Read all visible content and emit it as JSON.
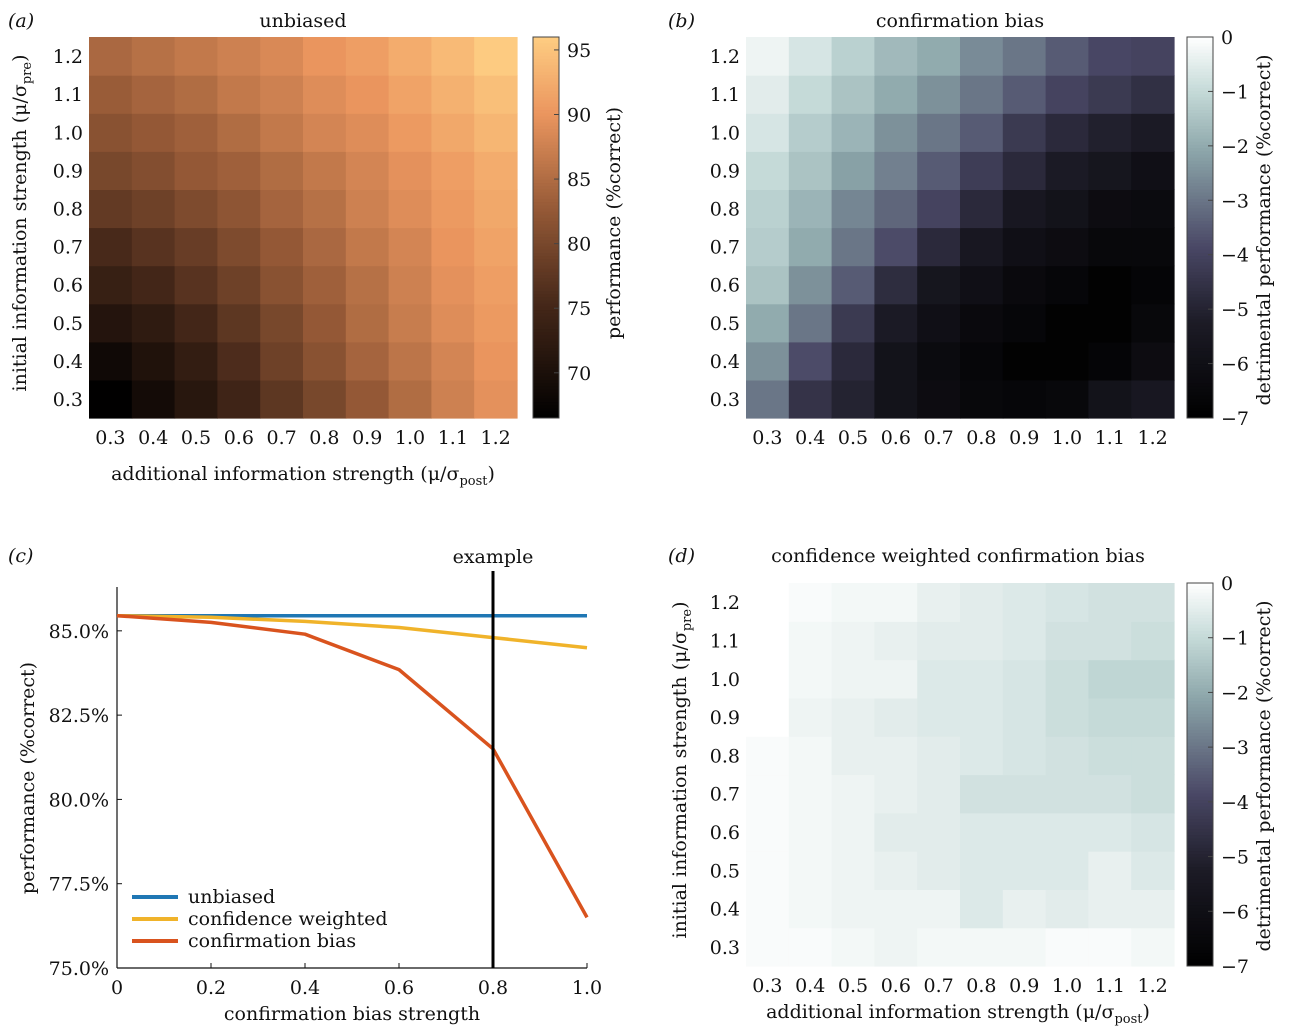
{
  "panels": {
    "a": {
      "letter": "(a)",
      "title": "unbiased"
    },
    "b": {
      "letter": "(b)",
      "title": "confirmation bias"
    },
    "c": {
      "letter": "(c)",
      "annotation": "example"
    },
    "d": {
      "letter": "(d)",
      "title": "confidence weighted confirmation bias"
    }
  },
  "axis_labels": {
    "initial_strength": "initial information strength (μ/σ",
    "initial_sub": "pre",
    "additional_strength": "additional information strength (μ/σ",
    "additional_sub": "post",
    "close_paren": ")",
    "performance_colorbar": "performance (%correct)",
    "detrimental_colorbar": "detrimental performance (%correct)",
    "performance_axis": "performance (%correct)",
    "bias_strength_axis": "confirmation bias strength"
  },
  "colors": {
    "unbiased": "#1f77b4",
    "confidence_weighted": "#f0b32a",
    "confirmation_bias": "#d9531e"
  },
  "chart_data": [
    {
      "id": "a",
      "type": "heatmap",
      "title": "unbiased",
      "x_ticks": [
        "0.3",
        "0.4",
        "0.5",
        "0.6",
        "0.7",
        "0.8",
        "0.9",
        "1.0",
        "1.1",
        "1.2"
      ],
      "y_ticks": [
        "0.3",
        "0.4",
        "0.5",
        "0.6",
        "0.7",
        "0.8",
        "0.9",
        "1.0",
        "1.1",
        "1.2"
      ],
      "x_values": [
        0.3,
        0.4,
        0.5,
        0.6,
        0.7,
        0.8,
        0.9,
        1.0,
        1.1,
        1.2
      ],
      "y_values": [
        0.3,
        0.4,
        0.5,
        0.6,
        0.7,
        0.8,
        0.9,
        1.0,
        1.1,
        1.2
      ],
      "xlabel": "additional information strength (μ/σpost)",
      "ylabel": "initial information strength (μ/σpre)",
      "colorbar": {
        "label": "performance (%correct)",
        "ticks": [
          "70",
          "75",
          "80",
          "85",
          "90",
          "95"
        ],
        "range": [
          66.5,
          96
        ],
        "colormap": "copper"
      },
      "z": [
        [
          66.6,
          69.0,
          71.5,
          74.5,
          77.5,
          80.0,
          82.5,
          85.0,
          87.5,
          89.5
        ],
        [
          68.5,
          70.5,
          73.0,
          76.0,
          79.0,
          81.5,
          84.0,
          86.0,
          88.0,
          90.0
        ],
        [
          71.0,
          72.5,
          75.0,
          77.5,
          80.0,
          82.5,
          85.0,
          87.0,
          89.0,
          90.5
        ],
        [
          73.5,
          75.0,
          77.0,
          79.0,
          81.5,
          83.5,
          85.5,
          87.5,
          89.5,
          91.0
        ],
        [
          75.5,
          77.0,
          78.5,
          80.5,
          82.5,
          84.5,
          86.5,
          88.0,
          90.0,
          91.5
        ],
        [
          78.0,
          79.0,
          80.5,
          82.0,
          84.0,
          85.5,
          87.5,
          89.0,
          90.5,
          92.0
        ],
        [
          80.0,
          81.0,
          82.5,
          83.5,
          85.0,
          86.5,
          88.0,
          89.5,
          91.0,
          92.5
        ],
        [
          81.5,
          82.5,
          83.5,
          85.0,
          86.5,
          88.0,
          89.0,
          90.5,
          92.0,
          93.5
        ],
        [
          83.0,
          84.0,
          85.0,
          86.5,
          87.5,
          89.0,
          90.0,
          91.5,
          93.0,
          94.5
        ],
        [
          84.5,
          85.5,
          86.5,
          87.5,
          88.5,
          90.0,
          91.0,
          92.5,
          94.0,
          95.8
        ]
      ]
    },
    {
      "id": "b",
      "type": "heatmap",
      "title": "confirmation bias",
      "x_ticks": [
        "0.3",
        "0.4",
        "0.5",
        "0.6",
        "0.7",
        "0.8",
        "0.9",
        "1.0",
        "1.1",
        "1.2"
      ],
      "y_ticks": [
        "0.3",
        "0.4",
        "0.5",
        "0.6",
        "0.7",
        "0.8",
        "0.9",
        "1.0",
        "1.1",
        "1.2"
      ],
      "x_values": [
        0.3,
        0.4,
        0.5,
        0.6,
        0.7,
        0.8,
        0.9,
        1.0,
        1.1,
        1.2
      ],
      "y_values": [
        0.3,
        0.4,
        0.5,
        0.6,
        0.7,
        0.8,
        0.9,
        1.0,
        1.1,
        1.2
      ],
      "colorbar": {
        "label": "detrimental performance (%correct)",
        "ticks": [
          "0",
          "−1",
          "−2",
          "−3",
          "−4",
          "−5",
          "−6",
          "−7"
        ],
        "range": [
          -7,
          0
        ],
        "colormap": "bone"
      },
      "z": [
        [
          -3.0,
          -4.5,
          -5.0,
          -5.8,
          -6.2,
          -6.5,
          -6.6,
          -6.5,
          -5.8,
          -5.5
        ],
        [
          -2.5,
          -3.8,
          -4.8,
          -5.8,
          -6.3,
          -6.6,
          -6.9,
          -6.9,
          -6.7,
          -6.2
        ],
        [
          -2.0,
          -3.0,
          -4.3,
          -5.3,
          -6.0,
          -6.4,
          -6.6,
          -6.9,
          -6.9,
          -6.5
        ],
        [
          -1.5,
          -2.5,
          -3.5,
          -4.7,
          -5.6,
          -6.0,
          -6.4,
          -6.6,
          -6.9,
          -6.7
        ],
        [
          -1.3,
          -2.0,
          -3.0,
          -3.8,
          -4.8,
          -5.5,
          -6.0,
          -6.2,
          -6.5,
          -6.5
        ],
        [
          -1.2,
          -1.8,
          -2.7,
          -3.3,
          -4.0,
          -4.8,
          -5.5,
          -5.8,
          -6.2,
          -6.3
        ],
        [
          -1.0,
          -1.5,
          -2.2,
          -2.8,
          -3.5,
          -4.2,
          -4.8,
          -5.3,
          -5.6,
          -6.0
        ],
        [
          -0.7,
          -1.3,
          -1.8,
          -2.5,
          -3.0,
          -3.5,
          -4.3,
          -4.8,
          -5.1,
          -5.3
        ],
        [
          -0.5,
          -1.0,
          -1.5,
          -2.0,
          -2.5,
          -3.0,
          -3.5,
          -4.0,
          -4.3,
          -4.6
        ],
        [
          -0.3,
          -0.7,
          -1.2,
          -1.7,
          -2.0,
          -2.6,
          -3.0,
          -3.5,
          -3.9,
          -4.0
        ]
      ]
    },
    {
      "id": "c",
      "type": "line",
      "x": [
        0,
        0.2,
        0.4,
        0.6,
        0.8,
        1.0
      ],
      "x_ticks": [
        "0",
        "0.2",
        "0.4",
        "0.6",
        "0.8",
        "1.0"
      ],
      "y_ticks": [
        "75.0%",
        "77.5%",
        "80.0%",
        "82.5%",
        "85.0%"
      ],
      "xlabel": "confirmation bias strength",
      "ylabel": "performance (%correct)",
      "xlim": [
        0,
        1.0
      ],
      "ylim": [
        75.0,
        86.3
      ],
      "legend_position": "bottom-left",
      "annotation": {
        "label": "example",
        "x": 0.8
      },
      "series": [
        {
          "name": "unbiased",
          "values": [
            85.45,
            85.45,
            85.45,
            85.45,
            85.45,
            85.45
          ]
        },
        {
          "name": "confidence weighted",
          "values": [
            85.45,
            85.4,
            85.28,
            85.1,
            84.8,
            84.5
          ]
        },
        {
          "name": "confirmation bias",
          "values": [
            85.45,
            85.25,
            84.9,
            83.85,
            81.5,
            76.5
          ]
        }
      ]
    },
    {
      "id": "d",
      "type": "heatmap",
      "title": "confidence weighted confirmation bias",
      "x_ticks": [
        "0.3",
        "0.4",
        "0.5",
        "0.6",
        "0.7",
        "0.8",
        "0.9",
        "1.0",
        "1.1",
        "1.2"
      ],
      "y_ticks": [
        "0.3",
        "0.4",
        "0.5",
        "0.6",
        "0.7",
        "0.8",
        "0.9",
        "1.0",
        "1.1",
        "1.2"
      ],
      "x_values": [
        0.3,
        0.4,
        0.5,
        0.6,
        0.7,
        0.8,
        0.9,
        1.0,
        1.1,
        1.2
      ],
      "y_values": [
        0.3,
        0.4,
        0.5,
        0.6,
        0.7,
        0.8,
        0.9,
        1.0,
        1.1,
        1.2
      ],
      "xlabel": "additional information strength (μ/σpost)",
      "ylabel": "initial information strength (μ/σpre)",
      "colorbar": {
        "label": "detrimental performance (%correct)",
        "ticks": [
          "0",
          "−1",
          "−2",
          "−3",
          "−4",
          "−5",
          "−6",
          "−7"
        ],
        "range": [
          -7,
          0
        ],
        "colormap": "bone"
      },
      "z": [
        [
          -0.1,
          -0.1,
          -0.2,
          -0.3,
          -0.2,
          -0.2,
          -0.2,
          -0.1,
          -0.1,
          -0.2
        ],
        [
          -0.1,
          -0.2,
          -0.3,
          -0.3,
          -0.3,
          -0.6,
          -0.4,
          -0.5,
          -0.4,
          -0.4
        ],
        [
          -0.1,
          -0.2,
          -0.3,
          -0.4,
          -0.5,
          -0.6,
          -0.6,
          -0.6,
          -0.4,
          -0.6
        ],
        [
          -0.1,
          -0.2,
          -0.3,
          -0.5,
          -0.5,
          -0.6,
          -0.6,
          -0.6,
          -0.6,
          -0.7
        ],
        [
          -0.1,
          -0.2,
          -0.3,
          -0.4,
          -0.5,
          -0.8,
          -0.8,
          -0.8,
          -0.8,
          -0.9
        ],
        [
          -0.1,
          -0.2,
          -0.4,
          -0.4,
          -0.5,
          -0.6,
          -0.7,
          -0.8,
          -0.9,
          -0.9
        ],
        [
          0.0,
          -0.3,
          -0.4,
          -0.5,
          -0.6,
          -0.6,
          -0.7,
          -0.9,
          -1.0,
          -1.0
        ],
        [
          0.0,
          -0.2,
          -0.3,
          -0.3,
          -0.6,
          -0.6,
          -0.7,
          -0.9,
          -1.1,
          -1.1
        ],
        [
          0.0,
          -0.2,
          -0.3,
          -0.4,
          -0.5,
          -0.5,
          -0.6,
          -0.8,
          -0.8,
          -0.9
        ],
        [
          0.0,
          -0.1,
          -0.2,
          -0.2,
          -0.4,
          -0.5,
          -0.6,
          -0.7,
          -0.8,
          -0.8
        ]
      ]
    }
  ]
}
